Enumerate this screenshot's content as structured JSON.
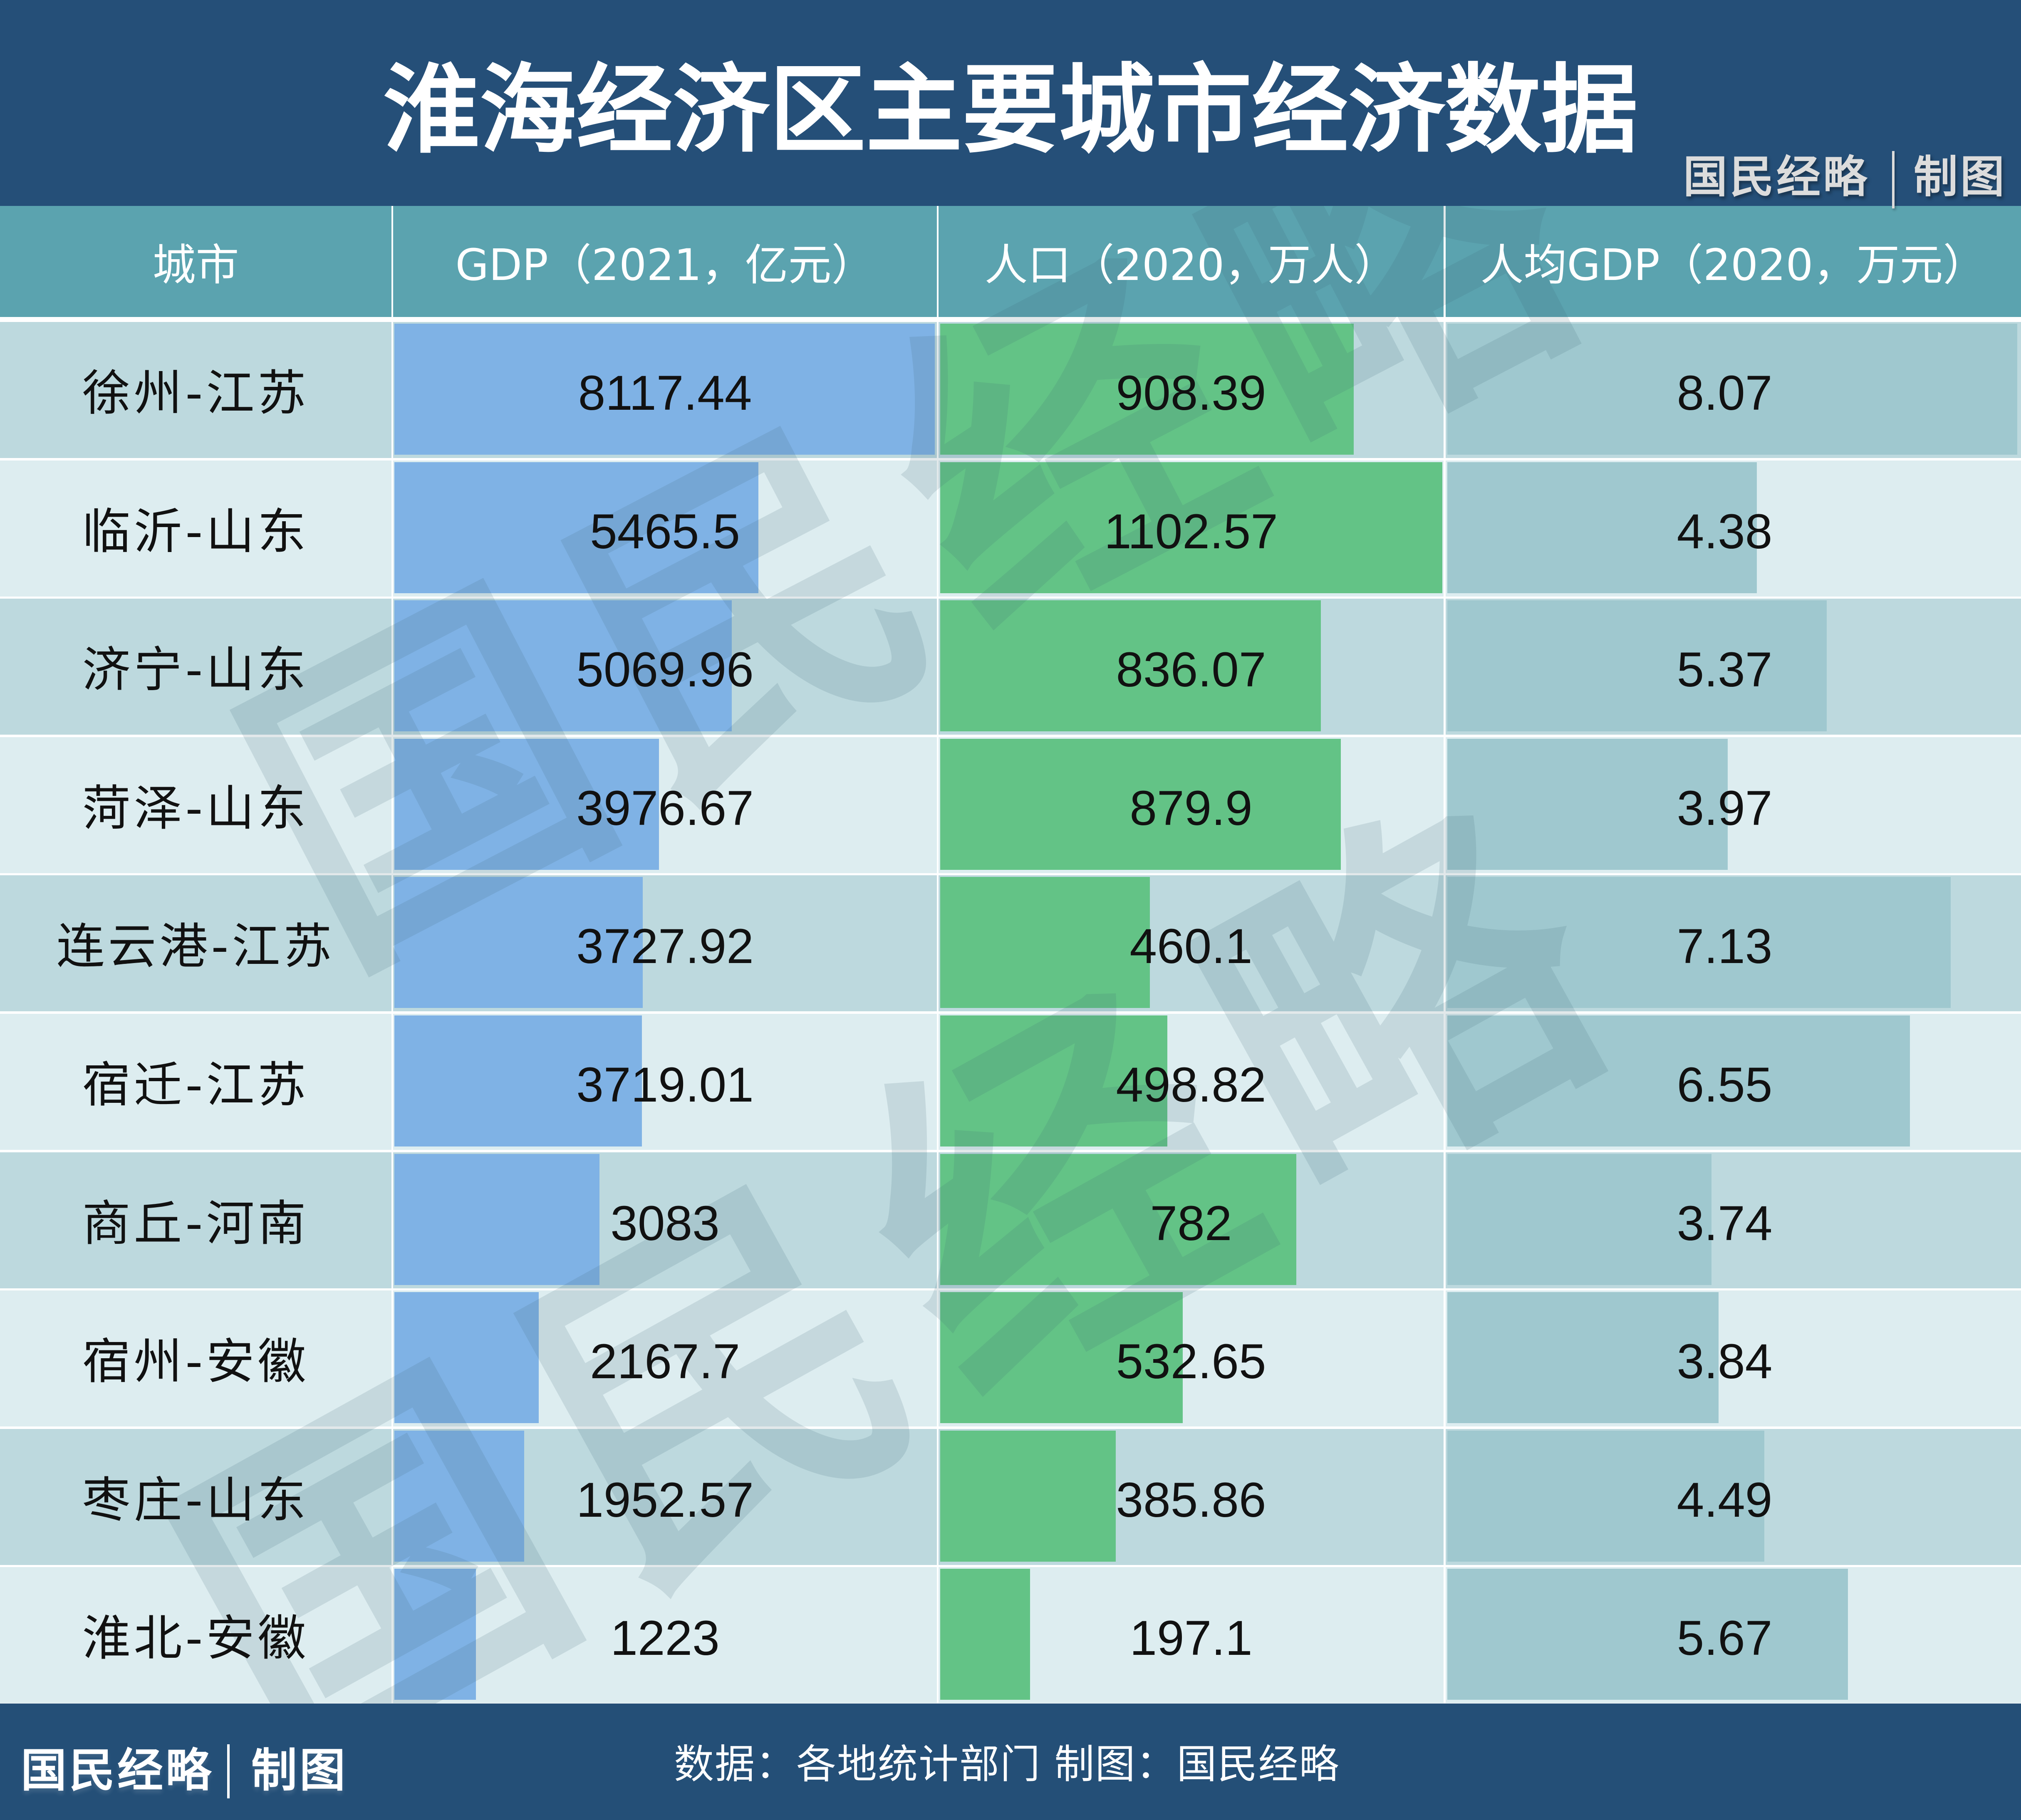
{
  "header": {
    "title": "淮海经济区主要城市经济数据",
    "credit": {
      "brand": "国民经略",
      "label": "制图"
    }
  },
  "table": {
    "columns": [
      "城市",
      "GDP（2021，亿元）",
      "人口（2020，万人）",
      "人均GDP（2020，万元）"
    ]
  },
  "chart_data": {
    "type": "table",
    "title": "淮海经济区主要城市经济数据",
    "xlabel": "城市",
    "ylabel": "",
    "grid": false,
    "legend": null,
    "categories": [
      "徐州-江苏",
      "临沂-山东",
      "济宁-山东",
      "菏泽-山东",
      "连云港-江苏",
      "宿迁-江苏",
      "商丘-河南",
      "宿州-安徽",
      "枣庄-山东",
      "淮北-安徽"
    ],
    "series": [
      {
        "name": "GDP（2021，亿元）",
        "values": [
          8117.44,
          5465.5,
          5069.96,
          3976.67,
          3727.92,
          3719.01,
          3083,
          2167.7,
          1952.57,
          1223
        ]
      },
      {
        "name": "人口（2020，万人）",
        "values": [
          908.39,
          1102.57,
          836.07,
          879.9,
          460.1,
          498.82,
          782,
          532.65,
          385.86,
          197.1
        ]
      },
      {
        "name": "人均GDP（2020，万元）",
        "values": [
          8.07,
          4.38,
          5.37,
          3.97,
          7.13,
          6.55,
          3.74,
          3.84,
          4.49,
          5.67
        ]
      }
    ]
  },
  "watermark": {
    "text": "国民经略"
  },
  "footer": {
    "credit": {
      "brand": "国民经略",
      "label": "制图"
    },
    "source": "数据：各地统计部门 制图：国民经略"
  },
  "colors": {
    "title_band": "#254F78",
    "header_row": "#5BA3AF",
    "row_odd": "#BDD9DE",
    "row_even": "#DDEDF0",
    "gdp_bar": "#7FB2E5",
    "population_bar": "#63C386",
    "per_capita_bar": "#9FC8CF",
    "text": "#111111",
    "footer": "#244F77"
  }
}
